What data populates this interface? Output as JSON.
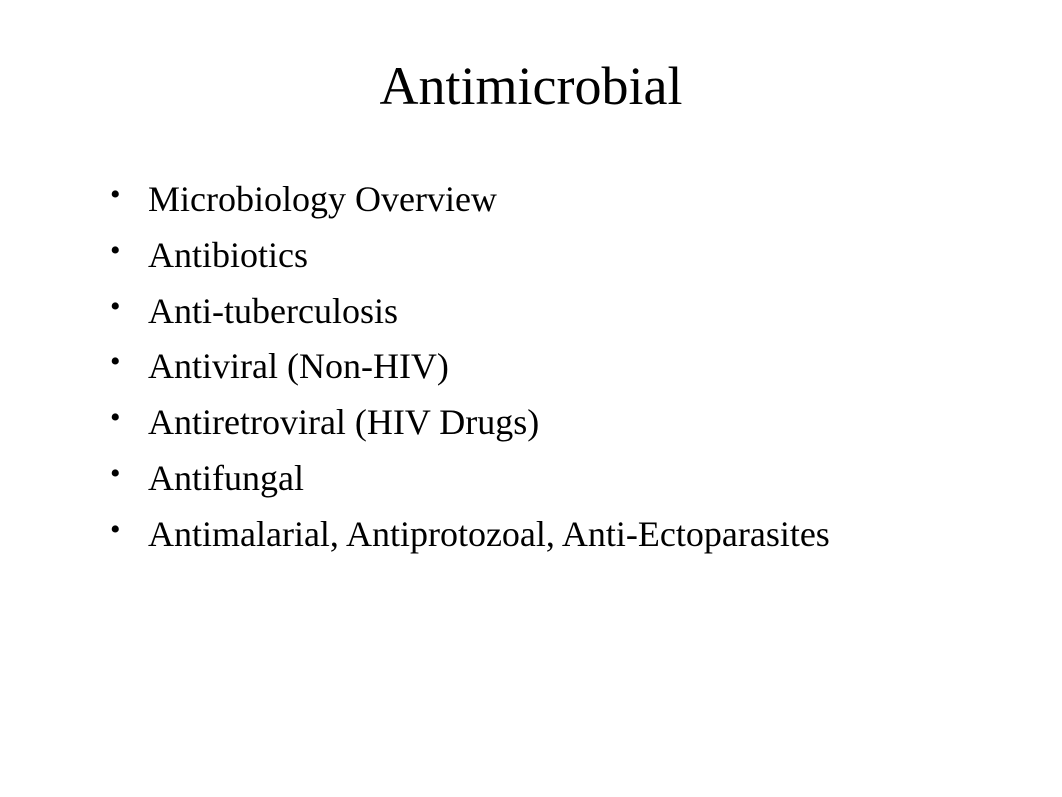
{
  "slide": {
    "title": "Antimicrobial",
    "bullets": [
      "Microbiology Overview",
      "Antibiotics",
      "Anti-tuberculosis",
      "Antiviral (Non-HIV)",
      "Antiretroviral (HIV Drugs)",
      "Antifungal",
      "Antimalarial, Antiprotozoal, Anti-Ectoparasites"
    ],
    "styling": {
      "background_color": "#ffffff",
      "text_color": "#000000",
      "font_family": "Times New Roman",
      "title_fontsize": 54,
      "bullet_fontsize": 36,
      "title_align": "center",
      "bullet_marker": "disc"
    }
  }
}
